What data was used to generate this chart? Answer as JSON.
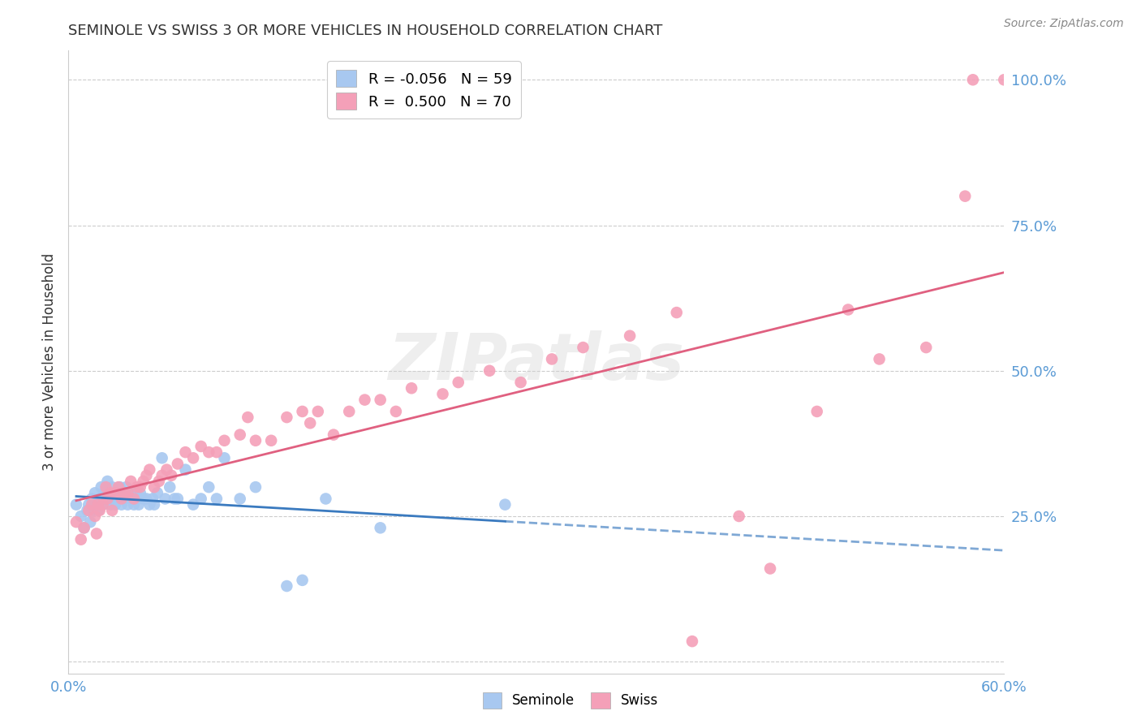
{
  "title": "SEMINOLE VS SWISS 3 OR MORE VEHICLES IN HOUSEHOLD CORRELATION CHART",
  "source": "Source: ZipAtlas.com",
  "ylabel": "3 or more Vehicles in Household",
  "watermark": "ZIPatlas",
  "xlim": [
    0.0,
    0.6
  ],
  "ylim": [
    -0.02,
    1.05
  ],
  "yticks": [
    0.0,
    0.25,
    0.5,
    0.75,
    1.0
  ],
  "ytick_labels": [
    "",
    "25.0%",
    "50.0%",
    "75.0%",
    "100.0%"
  ],
  "xticks": [
    0.0,
    0.1,
    0.2,
    0.3,
    0.4,
    0.5,
    0.6
  ],
  "legend_r_seminole": "-0.056",
  "legend_n_seminole": "59",
  "legend_r_swiss": "0.500",
  "legend_n_swiss": "70",
  "seminole_color": "#a8c8f0",
  "swiss_color": "#f4a0b8",
  "seminole_line_color": "#3a7abf",
  "swiss_line_color": "#e06080",
  "axis_label_color": "#5b9bd5",
  "seminole_x": [
    0.005,
    0.008,
    0.01,
    0.012,
    0.013,
    0.014,
    0.015,
    0.016,
    0.017,
    0.018,
    0.019,
    0.02,
    0.021,
    0.022,
    0.023,
    0.025,
    0.026,
    0.027,
    0.028,
    0.03,
    0.031,
    0.032,
    0.033,
    0.034,
    0.035,
    0.036,
    0.037,
    0.038,
    0.04,
    0.041,
    0.042,
    0.043,
    0.044,
    0.045,
    0.046,
    0.048,
    0.05,
    0.052,
    0.054,
    0.055,
    0.057,
    0.06,
    0.062,
    0.065,
    0.068,
    0.07,
    0.075,
    0.08,
    0.085,
    0.09,
    0.095,
    0.1,
    0.11,
    0.12,
    0.14,
    0.15,
    0.165,
    0.2,
    0.28
  ],
  "seminole_y": [
    0.27,
    0.25,
    0.23,
    0.26,
    0.27,
    0.24,
    0.28,
    0.26,
    0.29,
    0.27,
    0.26,
    0.28,
    0.3,
    0.27,
    0.29,
    0.31,
    0.28,
    0.27,
    0.3,
    0.27,
    0.29,
    0.28,
    0.3,
    0.27,
    0.29,
    0.28,
    0.3,
    0.27,
    0.28,
    0.29,
    0.27,
    0.29,
    0.28,
    0.27,
    0.29,
    0.28,
    0.28,
    0.27,
    0.28,
    0.27,
    0.29,
    0.35,
    0.28,
    0.3,
    0.28,
    0.28,
    0.33,
    0.27,
    0.28,
    0.3,
    0.28,
    0.35,
    0.28,
    0.3,
    0.13,
    0.14,
    0.28,
    0.23,
    0.27
  ],
  "swiss_x": [
    0.005,
    0.008,
    0.01,
    0.013,
    0.015,
    0.017,
    0.018,
    0.019,
    0.02,
    0.022,
    0.024,
    0.025,
    0.027,
    0.028,
    0.03,
    0.032,
    0.034,
    0.036,
    0.038,
    0.04,
    0.042,
    0.044,
    0.046,
    0.048,
    0.05,
    0.052,
    0.055,
    0.058,
    0.06,
    0.063,
    0.066,
    0.07,
    0.075,
    0.08,
    0.085,
    0.09,
    0.095,
    0.1,
    0.11,
    0.115,
    0.12,
    0.13,
    0.14,
    0.15,
    0.155,
    0.16,
    0.17,
    0.18,
    0.19,
    0.2,
    0.21,
    0.22,
    0.24,
    0.25,
    0.27,
    0.29,
    0.31,
    0.33,
    0.36,
    0.39,
    0.4,
    0.43,
    0.45,
    0.48,
    0.5,
    0.52,
    0.55,
    0.575,
    0.58,
    0.6
  ],
  "swiss_y": [
    0.24,
    0.21,
    0.23,
    0.26,
    0.27,
    0.25,
    0.22,
    0.27,
    0.26,
    0.27,
    0.3,
    0.28,
    0.29,
    0.26,
    0.29,
    0.3,
    0.28,
    0.29,
    0.29,
    0.31,
    0.28,
    0.3,
    0.3,
    0.31,
    0.32,
    0.33,
    0.3,
    0.31,
    0.32,
    0.33,
    0.32,
    0.34,
    0.36,
    0.35,
    0.37,
    0.36,
    0.36,
    0.38,
    0.39,
    0.42,
    0.38,
    0.38,
    0.42,
    0.43,
    0.41,
    0.43,
    0.39,
    0.43,
    0.45,
    0.45,
    0.43,
    0.47,
    0.46,
    0.48,
    0.5,
    0.48,
    0.52,
    0.54,
    0.56,
    0.6,
    0.035,
    0.25,
    0.16,
    0.43,
    0.605,
    0.52,
    0.54,
    0.8,
    1.0,
    1.0
  ]
}
